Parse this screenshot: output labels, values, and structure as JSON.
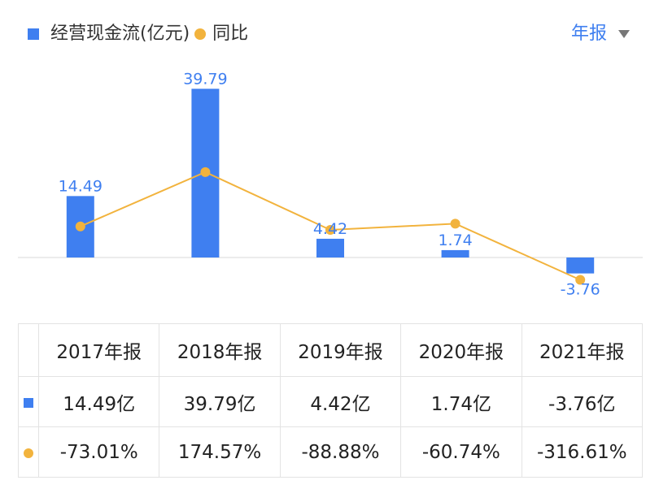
{
  "legend": {
    "bar_label": "经营现金流(亿元)",
    "line_label": "同比"
  },
  "period_selector": {
    "label": "年报"
  },
  "colors": {
    "bar": "#3f7ff0",
    "line": "#f2b33d",
    "negative_text": "#2e9c69",
    "positive_text": "#e04b4b"
  },
  "chart_data": {
    "type": "bar",
    "categories": [
      "2017年报",
      "2018年报",
      "2019年报",
      "2020年报",
      "2021年报"
    ],
    "series": [
      {
        "name": "经营现金流(亿元)",
        "type": "bar",
        "values": [
          14.49,
          39.79,
          4.42,
          1.74,
          -3.76
        ],
        "labels": [
          "14.49",
          "39.79",
          "4.42",
          "1.74",
          "-3.76"
        ]
      },
      {
        "name": "同比",
        "type": "line",
        "values": [
          -73.01,
          174.57,
          -88.88,
          -60.74,
          -316.61
        ]
      }
    ]
  },
  "table": {
    "headers": [
      "2017年报",
      "2018年报",
      "2019年报",
      "2020年报",
      "2021年报"
    ],
    "bar_row": [
      "14.49亿",
      "39.79亿",
      "4.42亿",
      "1.74亿",
      "-3.76亿"
    ],
    "line_row": [
      "-73.01%",
      "174.57%",
      "-88.88%",
      "-60.74%",
      "-316.61%"
    ]
  }
}
